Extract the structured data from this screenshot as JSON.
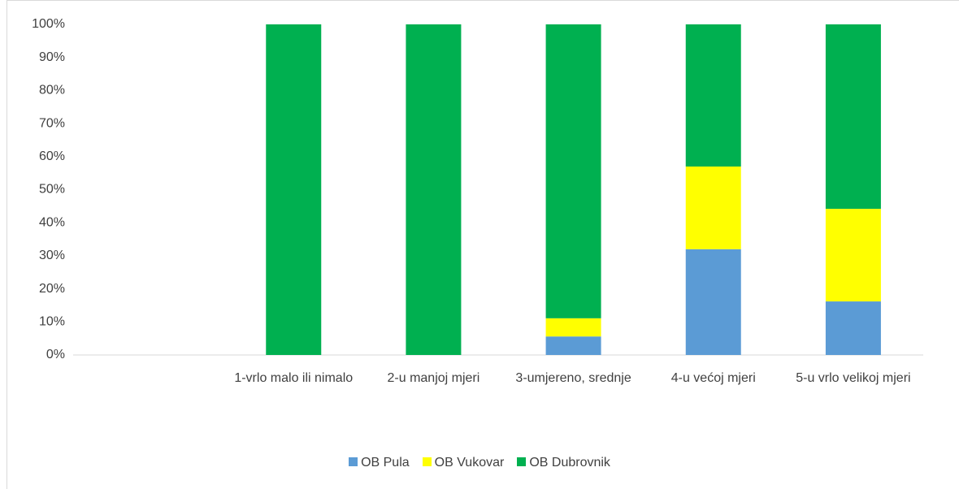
{
  "chart_data": {
    "type": "stacked_bar",
    "categories": [
      null,
      "1-vrlo malo ili nimalo",
      "2-u manjoj mjeri",
      "3-umjereno, srednje",
      "4-u većoj mjeri",
      "5-u vrlo velikoj mjeri"
    ],
    "series": [
      {
        "name": "OB Pula",
        "color": "#5b9bd5",
        "values": [
          null,
          0,
          0,
          5.6,
          32,
          16.2
        ]
      },
      {
        "name": "OB Vukovar",
        "color": "#ffff00",
        "values": [
          null,
          0,
          0,
          5.5,
          25,
          28
        ]
      },
      {
        "name": "OB Dubrovnik",
        "color": "#00b050",
        "values": [
          null,
          100,
          100,
          88.9,
          43,
          55.8
        ]
      }
    ],
    "ylim": [
      0,
      100
    ],
    "yticks": [
      {
        "value": 0,
        "label": "0%"
      },
      {
        "value": 10,
        "label": "10%"
      },
      {
        "value": 20,
        "label": "20%"
      },
      {
        "value": 30,
        "label": "30%"
      },
      {
        "value": 40,
        "label": "40%"
      },
      {
        "value": 50,
        "label": "50%"
      },
      {
        "value": 60,
        "label": "60%"
      },
      {
        "value": 70,
        "label": "70%"
      },
      {
        "value": 80,
        "label": "80%"
      },
      {
        "value": 90,
        "label": "90%"
      },
      {
        "value": 100,
        "label": "100%"
      }
    ],
    "grid": false,
    "legend": "bottom"
  }
}
